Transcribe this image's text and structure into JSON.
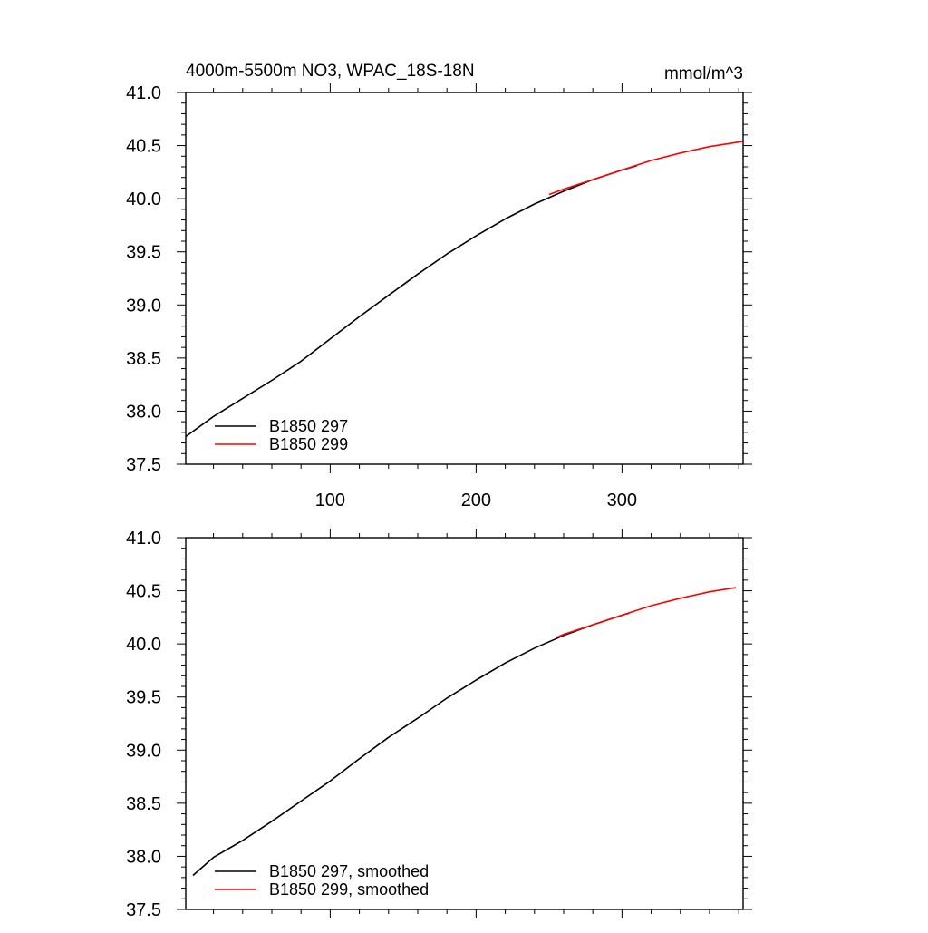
{
  "chart_data": [
    {
      "type": "line",
      "title": "4000m-5500m NO3, WPAC_18S-18N",
      "units": "mmol/m^3",
      "xlim": [
        1,
        383
      ],
      "ylim": [
        37.5,
        41.0
      ],
      "x_ticks": [
        100,
        200,
        300
      ],
      "y_ticks": [
        37.5,
        38.0,
        38.5,
        39.0,
        39.5,
        40.0,
        40.5,
        41.0
      ],
      "y_tick_labels": [
        "37.5",
        "38.0",
        "38.5",
        "39.0",
        "39.5",
        "40.0",
        "40.5",
        "41.0"
      ],
      "grid": false,
      "legend_position": "bottom-left",
      "series": [
        {
          "name": "B1850 297",
          "color": "#000000",
          "x": [
            1,
            20,
            40,
            60,
            80,
            100,
            120,
            140,
            160,
            180,
            200,
            220,
            240,
            260,
            280,
            300,
            310
          ],
          "values": [
            37.76,
            37.95,
            38.12,
            38.29,
            38.47,
            38.68,
            38.89,
            39.09,
            39.29,
            39.48,
            39.65,
            39.81,
            39.95,
            40.07,
            40.18,
            40.27,
            40.31
          ]
        },
        {
          "name": "B1850 299",
          "color": "#ff0000",
          "x": [
            250,
            260,
            280,
            300,
            320,
            340,
            360,
            383
          ],
          "values": [
            40.04,
            40.09,
            40.18,
            40.27,
            40.36,
            40.43,
            40.49,
            40.54
          ]
        }
      ]
    },
    {
      "type": "line",
      "xlim": [
        1,
        383
      ],
      "ylim": [
        37.5,
        41.0
      ],
      "x_ticks": [
        100,
        200,
        300
      ],
      "y_ticks": [
        37.5,
        38.0,
        38.5,
        39.0,
        39.5,
        40.0,
        40.5,
        41.0
      ],
      "y_tick_labels": [
        "37.5",
        "38.0",
        "38.5",
        "39.0",
        "39.5",
        "40.0",
        "40.5",
        "41.0"
      ],
      "grid": false,
      "legend_position": "bottom-left",
      "series": [
        {
          "name": "B1850 297, smoothed",
          "color": "#000000",
          "x": [
            6,
            20,
            40,
            60,
            80,
            100,
            120,
            140,
            160,
            180,
            200,
            220,
            240,
            260,
            280,
            300,
            305
          ],
          "values": [
            37.82,
            37.99,
            38.15,
            38.33,
            38.52,
            38.71,
            38.92,
            39.12,
            39.3,
            39.49,
            39.66,
            39.82,
            39.96,
            40.08,
            40.18,
            40.27,
            40.29
          ]
        },
        {
          "name": "B1850 299, smoothed",
          "color": "#ff0000",
          "x": [
            255,
            260,
            280,
            300,
            320,
            340,
            360,
            378
          ],
          "values": [
            40.06,
            40.09,
            40.18,
            40.27,
            40.36,
            40.43,
            40.49,
            40.53
          ]
        }
      ]
    }
  ]
}
